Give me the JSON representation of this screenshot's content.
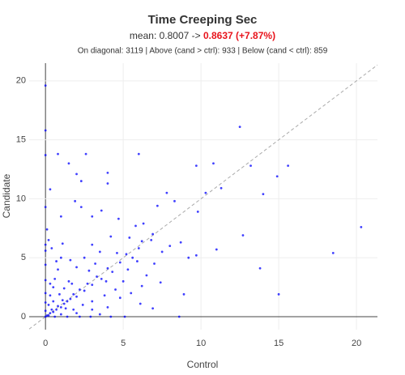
{
  "chart_data": {
    "type": "scatter",
    "title": "Time Creeping Sec",
    "subtitle": {
      "text": "mean: 0.8007 ->",
      "highlight": "0.8637 (+7.87%)"
    },
    "annotation": "On diagonal: 3119 | Above (cand > ctrl): 933 | Below (cand < ctrl): 859",
    "x_label": "Control",
    "y_label": "Candidate",
    "color": "#0000ff",
    "highlight_color": "#e8141c",
    "grid": true,
    "diagonal": true,
    "xlim": [
      -1.05,
      21.35
    ],
    "ylim": [
      -1.1,
      21.5
    ],
    "xticks": [
      0,
      5,
      10,
      15,
      20
    ],
    "yticks": [
      0,
      5,
      10,
      15,
      20
    ],
    "x": [
      0,
      0.1,
      0.2,
      0.3,
      0.5,
      0.4,
      0.7,
      0.8,
      1.0,
      1.2,
      1.1,
      1.4,
      1.6,
      1.8,
      2.0,
      2.2,
      2.5,
      2.7,
      3.0,
      3.3,
      3.6,
      4.0,
      4.3,
      4.8,
      5.2,
      5.6,
      6.2,
      6.8,
      0.2,
      0.3,
      0.5,
      0.6,
      0.8,
      1.0,
      0.4,
      0.2,
      1.5,
      2.0,
      2.5,
      3.0,
      3.5,
      4.2,
      1.2,
      1.8,
      2.4,
      3.0,
      3.8,
      4.5,
      5.0,
      5.5,
      6.5,
      7.0,
      7.5,
      1.0,
      2.0,
      3.0,
      4.0,
      0.6,
      1.4,
      2.2,
      2.9,
      4.2,
      0,
      0,
      0,
      0,
      0,
      0,
      0,
      0.1,
      0,
      3.6,
      2.3,
      4.7,
      5.4,
      6.3,
      7.2,
      8.0,
      5.9,
      4.8,
      6.2,
      6.9,
      0.9,
      1.3,
      0.5,
      1.7,
      2.8,
      3.2,
      3.9,
      4.6,
      5.3,
      6.0,
      0.3,
      0.7,
      1.1,
      1.6,
      0,
      0,
      0,
      0.8,
      1.5,
      2.6,
      2.0,
      4.0,
      6.0,
      12.5,
      9.7,
      10.8,
      13.2,
      14.9,
      15.6,
      14.0,
      12.7,
      20.3,
      18.5,
      13.8,
      15.0,
      11.0,
      9.8,
      8.3,
      7.8,
      4.0,
      2.3,
      0.3,
      1.9,
      3.0,
      1.0,
      5.8,
      6.9,
      8.7,
      9.2,
      9.7,
      10.3,
      11.3,
      8.9,
      7.4,
      6.1,
      8.6,
      5.1,
      3.5
    ],
    "y": [
      0,
      0.1,
      0.1,
      0.3,
      0.4,
      0.6,
      0.6,
      0.9,
      0.8,
      1.1,
      1.4,
      1.3,
      1.5,
      1.9,
      1.7,
      2.3,
      2.2,
      2.8,
      2.7,
      3.4,
      3.2,
      4.1,
      3.8,
      4.6,
      5.3,
      5.0,
      6.4,
      6.5,
      1.0,
      1.8,
      2.5,
      3.2,
      4.0,
      5.0,
      5.8,
      6.5,
      3.0,
      4.2,
      5.0,
      6.1,
      5.5,
      6.8,
      2.4,
      0.6,
      1.0,
      1.3,
      1.8,
      2.3,
      3.0,
      2.0,
      3.5,
      4.5,
      5.5,
      0.2,
      0.3,
      0.6,
      0.8,
      0.0,
      0.0,
      0.0,
      0.0,
      0.0,
      0.5,
      1.2,
      2.0,
      3.1,
      4.4,
      5.6,
      6.1,
      7.4,
      9.3,
      9.0,
      9.3,
      8.3,
      6.7,
      7.9,
      9.4,
      6.0,
      4.7,
      1.6,
      2.6,
      0.7,
      1.9,
      0.7,
      1.3,
      2.8,
      3.9,
      4.5,
      3.0,
      5.4,
      4.0,
      5.8,
      2.8,
      4.7,
      6.2,
      4.8,
      19.6,
      15.8,
      13.7,
      13.8,
      13.0,
      13.8,
      12.1,
      12.2,
      13.8,
      16.1,
      12.8,
      13.0,
      12.8,
      11.9,
      12.8,
      10.4,
      6.9,
      7.6,
      5.4,
      4.1,
      1.9,
      5.7,
      8.9,
      9.8,
      10.5,
      11.3,
      11.5,
      10.8,
      9.8,
      8.5,
      8.5,
      7.7,
      7.0,
      6.3,
      5.0,
      5.2,
      10.5,
      10.9,
      1.9,
      2.9,
      1.1,
      0.0,
      0.0,
      0.2
    ]
  }
}
